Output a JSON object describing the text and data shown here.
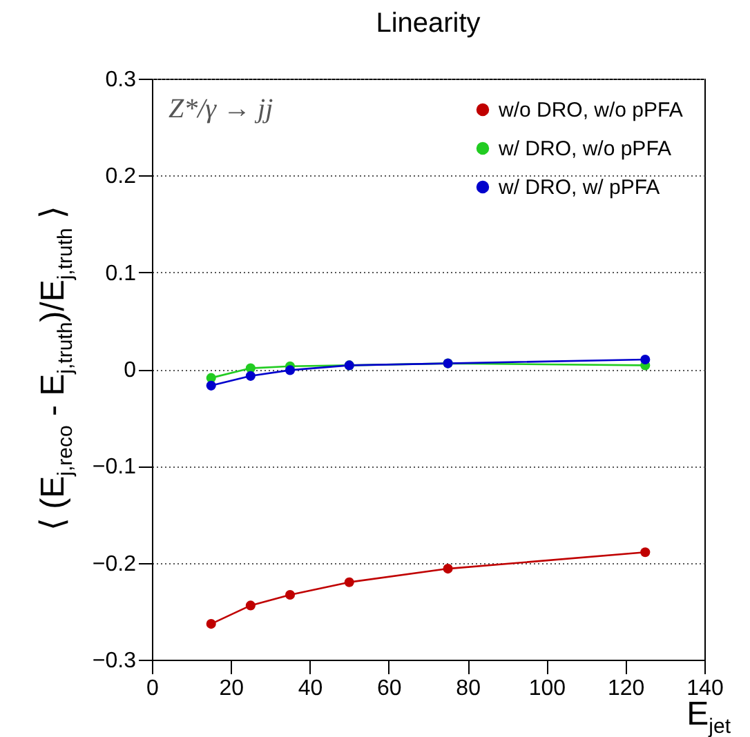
{
  "chart_data": {
    "type": "line",
    "title": "Linearity",
    "xlabel": "E$_{jet}$",
    "ylabel": "⟨ (E$_{j,reco}$ - E$_{j,truth}$)/E$_{j,truth}$ ⟩",
    "annotations": [
      "Z*/γ → jj"
    ],
    "x": [
      15,
      25,
      35,
      50,
      75,
      125
    ],
    "series": [
      {
        "name": "w/o DRO, w/o pPFA",
        "color": "#c00000",
        "values": [
          -0.263,
          -0.244,
          -0.233,
          -0.22,
          -0.206,
          -0.189
        ]
      },
      {
        "name": "w/ DRO, w/o pPFA",
        "color": "#22cc22",
        "values": [
          -0.009,
          0.001,
          0.003,
          0.004,
          0.006,
          0.004
        ]
      },
      {
        "name": "w/ DRO, w/ pPFA",
        "color": "#0000cc",
        "values": [
          -0.017,
          -0.007,
          -0.001,
          0.004,
          0.006,
          0.01
        ]
      }
    ],
    "xlim": [
      0,
      140
    ],
    "xticks": [
      0,
      20,
      40,
      60,
      80,
      100,
      120,
      140
    ],
    "ylim": [
      -0.3,
      0.3
    ],
    "yticks": [
      -0.3,
      -0.2,
      -0.1,
      0,
      0.1,
      0.2,
      0.3
    ],
    "grid": "y",
    "legend": "top right",
    "marker": "circle",
    "line_style": "solid"
  }
}
